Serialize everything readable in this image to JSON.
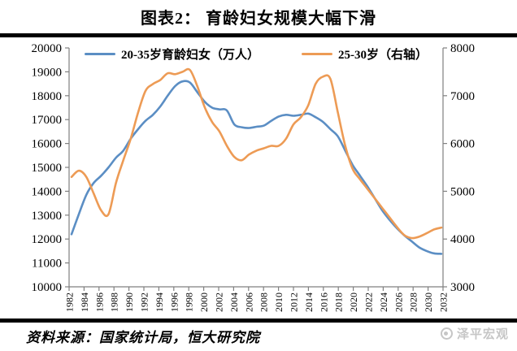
{
  "title": "图表2： 育龄妇女规模大幅下滑",
  "footer": {
    "source": "资料来源：国家统计局，恒大研究院",
    "brand": "泽平宏观"
  },
  "colors": {
    "blue": "#5B8EC4",
    "orange": "#ED9B55",
    "axis": "#808080",
    "divider": "#000000",
    "brand_gray": "#c6c6c6"
  },
  "chart_data": {
    "type": "line",
    "title": "图表2： 育龄妇女规模大幅下滑",
    "grid": false,
    "legend_position": "top",
    "x": [
      1982,
      1983,
      1984,
      1985,
      1986,
      1987,
      1988,
      1989,
      1990,
      1991,
      1992,
      1993,
      1994,
      1995,
      1996,
      1997,
      1998,
      1999,
      2000,
      2001,
      2002,
      2003,
      2004,
      2005,
      2006,
      2007,
      2008,
      2009,
      2010,
      2011,
      2012,
      2013,
      2014,
      2015,
      2016,
      2017,
      2018,
      2019,
      2020,
      2021,
      2022,
      2023,
      2024,
      2025,
      2026,
      2027,
      2028,
      2029,
      2030,
      2031,
      2032
    ],
    "x_tick_labels": [
      "1982",
      "1984",
      "1986",
      "1988",
      "1990",
      "1992",
      "1994",
      "1996",
      "1998",
      "2000",
      "2002",
      "2004",
      "2006",
      "2008",
      "2010",
      "2012",
      "2014",
      "2016",
      "2018",
      "2020",
      "2022",
      "2024",
      "2026",
      "2028",
      "2030",
      "2032"
    ],
    "left_axis": {
      "min": 10000,
      "max": 20000,
      "ticks": [
        "20000",
        "19000",
        "18000",
        "17000",
        "16000",
        "15000",
        "14000",
        "13000",
        "12000",
        "11000",
        "10000"
      ]
    },
    "right_axis": {
      "min": 3000,
      "max": 8000,
      "ticks": [
        "8000",
        "7000",
        "6000",
        "5000",
        "4000",
        "3000"
      ]
    },
    "series": [
      {
        "name": "20-35岁育龄妇女（万人）",
        "axis": "left",
        "color": "#5B8EC4",
        "values": [
          12200,
          13050,
          13850,
          14350,
          14650,
          15000,
          15400,
          15700,
          16200,
          16600,
          16950,
          17200,
          17550,
          18000,
          18400,
          18600,
          18550,
          18150,
          17750,
          17500,
          17430,
          17380,
          16800,
          16680,
          16650,
          16700,
          16750,
          16950,
          17130,
          17200,
          17160,
          17200,
          17250,
          17100,
          16900,
          16600,
          16300,
          15700,
          15100,
          14650,
          14200,
          13700,
          13200,
          12800,
          12450,
          12150,
          11900,
          11650,
          11500,
          11400,
          11380
        ]
      },
      {
        "name": "25-30岁（右轴）",
        "axis": "right",
        "color": "#ED9B55",
        "values": [
          5300,
          5430,
          5300,
          4950,
          4600,
          4520,
          5170,
          5650,
          6100,
          6650,
          7100,
          7245,
          7330,
          7470,
          7450,
          7500,
          7540,
          7200,
          6760,
          6450,
          6250,
          5950,
          5720,
          5650,
          5770,
          5850,
          5900,
          5950,
          5950,
          6100,
          6400,
          6550,
          6800,
          7250,
          7400,
          7350,
          6650,
          5950,
          5470,
          5250,
          5050,
          4850,
          4650,
          4450,
          4250,
          4080,
          4020,
          4050,
          4120,
          4200,
          4240
        ]
      }
    ]
  }
}
